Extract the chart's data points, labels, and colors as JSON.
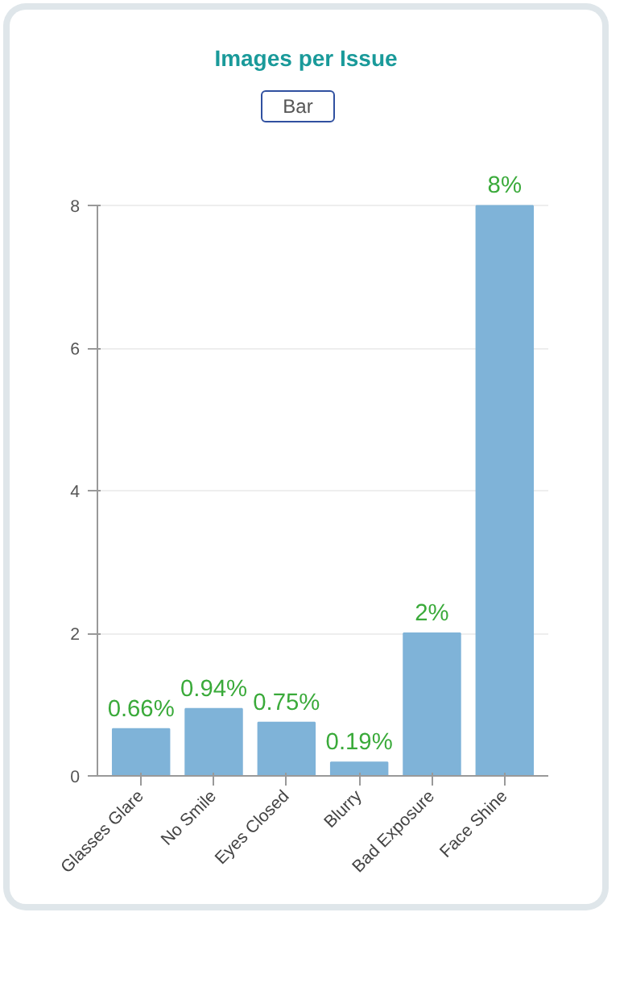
{
  "chart_data": {
    "type": "bar",
    "title": "Images per Issue",
    "annotations": [
      "Bar"
    ],
    "categories": [
      "Glasses Glare",
      "No Smile",
      "Eyes Closed",
      "Blurry",
      "Bad Exposure",
      "Face Shine"
    ],
    "values": [
      0.66,
      0.94,
      0.75,
      0.19,
      2,
      8
    ],
    "value_labels": [
      "0.66%",
      "0.94%",
      "0.75%",
      "0.19%",
      "2%",
      "8%"
    ],
    "color": "#7fb3d8",
    "ylim": [
      0,
      8
    ],
    "yticks": [
      0,
      2,
      4,
      6,
      8
    ],
    "grid": "y"
  }
}
